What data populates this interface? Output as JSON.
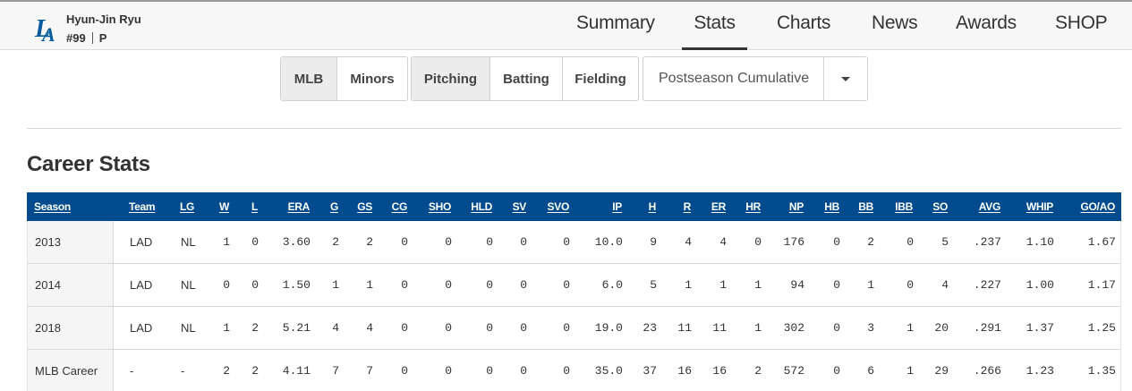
{
  "player": {
    "name": "Hyun-Jin Ryu",
    "number": "#99",
    "position": "P",
    "logo_color": "#005a9c"
  },
  "nav": [
    "Summary",
    "Stats",
    "Charts",
    "News",
    "Awards",
    "SHOP"
  ],
  "nav_active": "Stats",
  "filters": {
    "league": [
      "MLB",
      "Minors"
    ],
    "league_selected": "MLB",
    "type": [
      "Pitching",
      "Batting",
      "Fielding"
    ],
    "type_selected": "Pitching",
    "period": "Postseason Cumulative"
  },
  "section_title": "Career Stats",
  "table": {
    "header_color": "#004b8d",
    "columns": [
      "Season",
      "Team",
      "LG",
      "W",
      "L",
      "ERA",
      "G",
      "GS",
      "CG",
      "SHO",
      "HLD",
      "SV",
      "SVO",
      "IP",
      "H",
      "R",
      "ER",
      "HR",
      "NP",
      "HB",
      "BB",
      "IBB",
      "SO",
      "AVG",
      "WHIP",
      "GO/AO"
    ],
    "rows": [
      [
        "2013",
        "LAD",
        "NL",
        "1",
        "0",
        "3.60",
        "2",
        "2",
        "0",
        "0",
        "0",
        "0",
        "0",
        "10.0",
        "9",
        "4",
        "4",
        "0",
        "176",
        "0",
        "2",
        "0",
        "5",
        ".237",
        "1.10",
        "1.67"
      ],
      [
        "2014",
        "LAD",
        "NL",
        "0",
        "0",
        "1.50",
        "1",
        "1",
        "0",
        "0",
        "0",
        "0",
        "0",
        "6.0",
        "5",
        "1",
        "1",
        "1",
        "94",
        "0",
        "1",
        "0",
        "4",
        ".227",
        "1.00",
        "1.17"
      ],
      [
        "2018",
        "LAD",
        "NL",
        "1",
        "2",
        "5.21",
        "4",
        "4",
        "0",
        "0",
        "0",
        "0",
        "0",
        "19.0",
        "23",
        "11",
        "11",
        "1",
        "302",
        "0",
        "3",
        "1",
        "20",
        ".291",
        "1.37",
        "1.25"
      ],
      [
        "MLB Career",
        "-",
        "-",
        "2",
        "2",
        "4.11",
        "7",
        "7",
        "0",
        "0",
        "0",
        "0",
        "0",
        "35.0",
        "37",
        "16",
        "16",
        "2",
        "572",
        "0",
        "6",
        "1",
        "29",
        ".266",
        "1.23",
        "1.35"
      ]
    ]
  }
}
